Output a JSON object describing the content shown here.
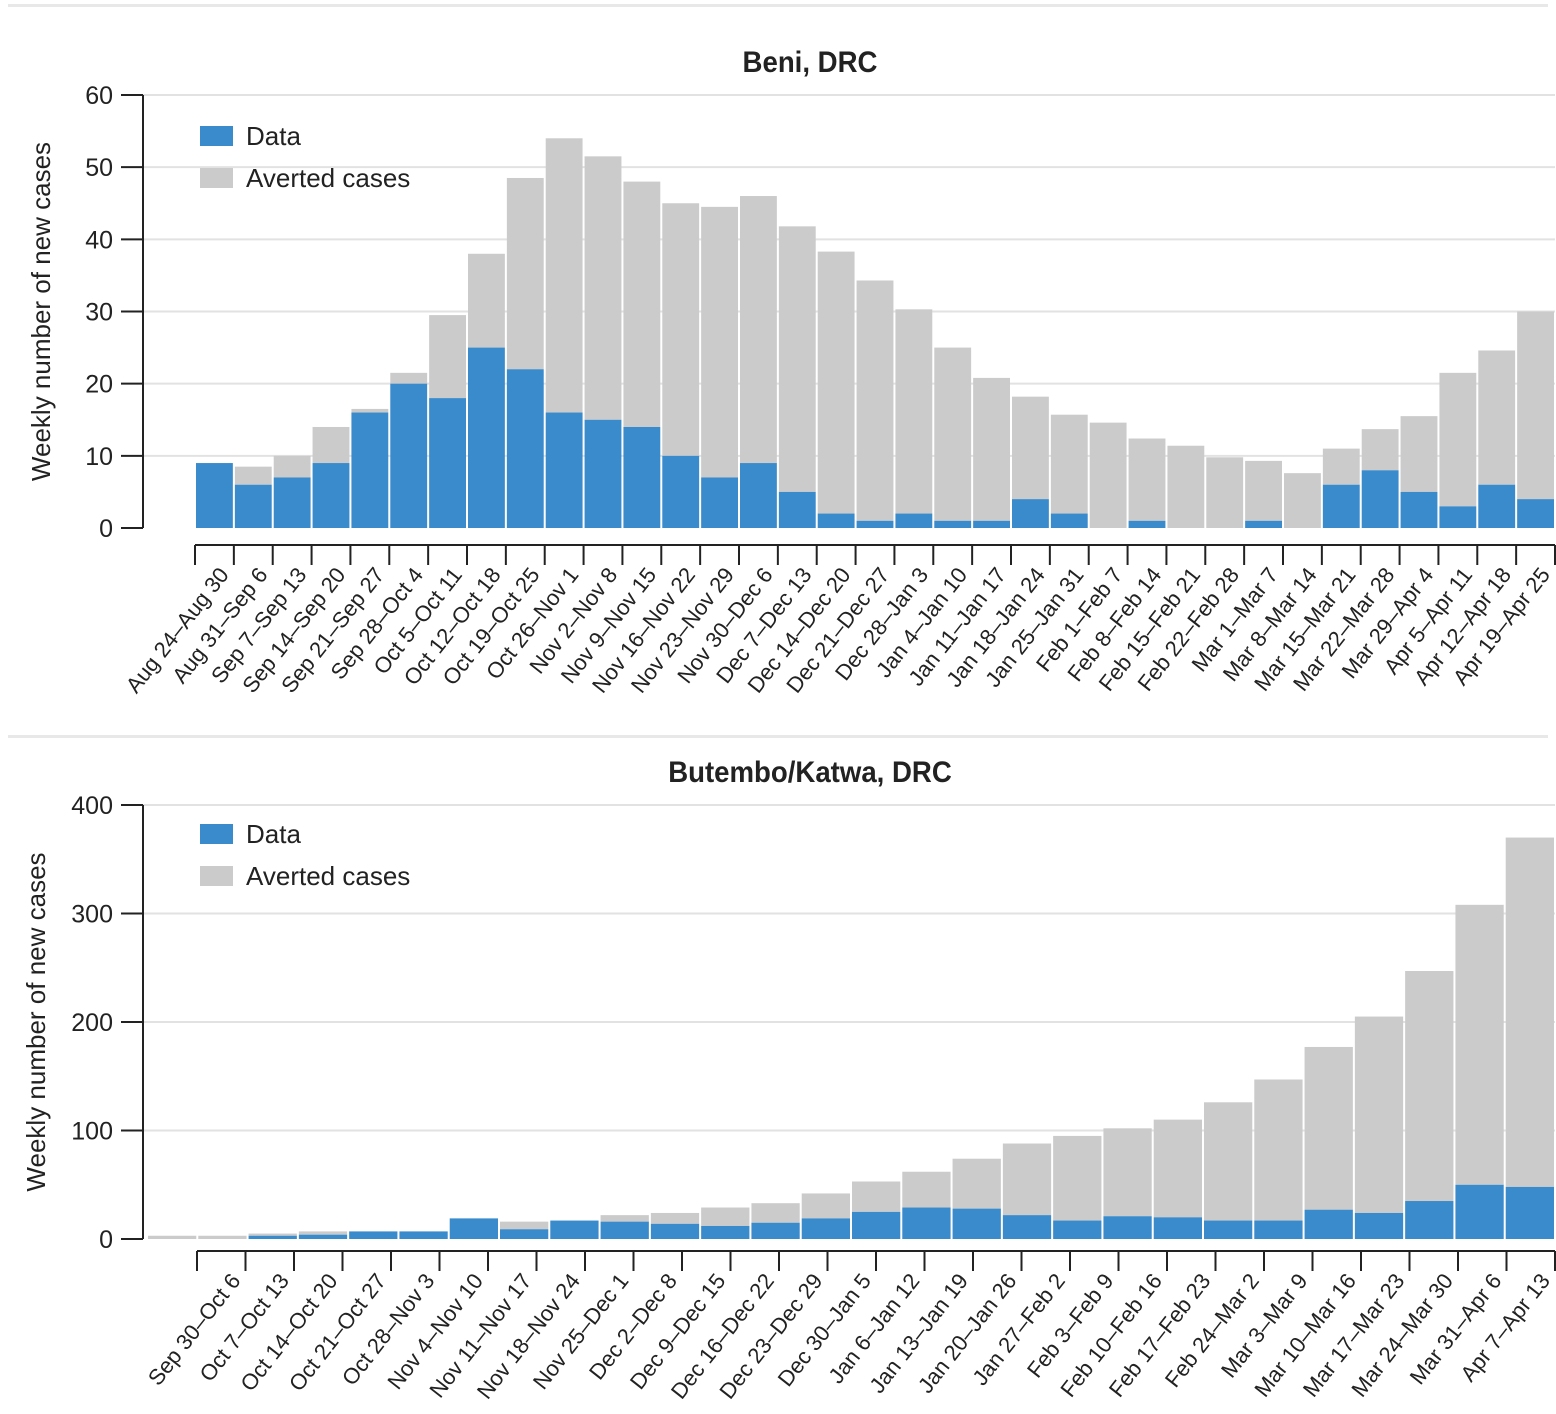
{
  "colors": {
    "data": "#3a8bcb",
    "averted": "#cbcbcb",
    "grid": "#e2e2e2",
    "axis": "#222222",
    "text": "#222222"
  },
  "chart_data": [
    {
      "type": "bar",
      "stacked": true,
      "title": "Beni, DRC",
      "ylabel": "Weekly number of new cases",
      "xlabel": "",
      "ylim": [
        0,
        60
      ],
      "yticks": [
        0,
        10,
        20,
        30,
        40,
        50,
        60
      ],
      "grid": true,
      "legend": {
        "position": "top-left",
        "entries": [
          "Data",
          "Averted cases"
        ]
      },
      "categories": [
        "Aug 24–Aug 30",
        "Aug 31–Sep 6",
        "Sep 7–Sep 13",
        "Sep 14–Sep 20",
        "Sep 21–Sep 27",
        "Sep 28–Oct 4",
        "Oct 5–Oct 11",
        "Oct 12–Oct 18",
        "Oct 19–Oct 25",
        "Oct 26–Nov 1",
        "Nov 2–Nov 8",
        "Nov 9–Nov 15",
        "Nov 16–Nov 22",
        "Nov 23–Nov 29",
        "Nov 30–Dec 6",
        "Dec 7–Dec 13",
        "Dec 14–Dec 20",
        "Dec 21–Dec 27",
        "Dec 28–Jan 3",
        "Jan 4–Jan 10",
        "Jan 11–Jan 17",
        "Jan 18–Jan 24",
        "Jan 25–Jan 31",
        "Feb 1–Feb 7",
        "Feb 8–Feb 14",
        "Feb 15–Feb 21",
        "Feb 22–Feb 28",
        "Mar 1–Mar 7",
        "Mar 8–Mar 14",
        "Mar 15–Mar 21",
        "Mar 22–Mar 28",
        "Mar 29–Apr 4",
        "Apr 5–Apr 11",
        "Apr 12–Apr 18",
        "Apr 19–Apr 25"
      ],
      "series": [
        {
          "name": "Data",
          "values": [
            9,
            6,
            7,
            9,
            16,
            20,
            18,
            25,
            22,
            16,
            15,
            14,
            10,
            7,
            9,
            5,
            2,
            1,
            2,
            1,
            1,
            4,
            2,
            0,
            1,
            0,
            0,
            1,
            0,
            6,
            8,
            5,
            3,
            6,
            4
          ]
        },
        {
          "name": "Averted cases",
          "values": [
            0,
            2.5,
            3,
            5,
            0.5,
            1.5,
            11.5,
            13,
            26.5,
            38,
            36.5,
            34,
            35,
            37.5,
            37,
            36.8,
            36.3,
            33.3,
            28.3,
            24,
            19.8,
            14.2,
            13.7,
            14.6,
            11.4,
            11.4,
            9.8,
            8.3,
            7.6,
            5,
            5.7,
            10.5,
            18.5,
            18.6,
            26
          ]
        }
      ]
    },
    {
      "type": "bar",
      "stacked": true,
      "title": "Butembo/Katwa, DRC",
      "ylabel": "Weekly number of new cases",
      "xlabel": "",
      "ylim": [
        0,
        400
      ],
      "yticks": [
        0,
        100,
        200,
        300,
        400
      ],
      "grid": true,
      "legend": {
        "position": "top-left",
        "entries": [
          "Data",
          "Averted cases"
        ]
      },
      "categories": [
        "Sep 30–Oct 6",
        "Oct 7–Oct 13",
        "Oct 14–Oct 20",
        "Oct 21–Oct 27",
        "Oct 28–Nov 3",
        "Nov 4–Nov 10",
        "Nov 11–Nov 17",
        "Nov 18–Nov 24",
        "Nov 25–Dec 1",
        "Dec 2–Dec 8",
        "Dec 9–Dec 15",
        "Dec 16–Dec 22",
        "Dec 23–Dec 29",
        "Dec 30–Jan 5",
        "Jan 6–Jan 12",
        "Jan 13–Jan 19",
        "Jan 20–Jan 26",
        "Jan 27–Feb 2",
        "Feb 3–Feb 9",
        "Feb 10–Feb 16",
        "Feb 17–Feb 23",
        "Feb 24–Mar 2",
        "Mar 3–Mar 9",
        "Mar 10–Mar 16",
        "Mar 17–Mar 23",
        "Mar 24–Mar 30",
        "Mar 31–Apr 6",
        "Apr 7–Apr 13"
      ],
      "series": [
        {
          "name": "Data",
          "values": [
            0,
            0,
            3,
            4,
            7,
            7,
            19,
            9,
            17,
            16,
            14,
            12,
            15,
            19,
            25,
            29,
            28,
            22,
            17,
            21,
            20,
            17,
            17,
            27,
            24,
            35,
            50,
            48
          ]
        },
        {
          "name": "Averted cases",
          "values": [
            3,
            3,
            2,
            3,
            0,
            0,
            0,
            7,
            0,
            6,
            10,
            17,
            18,
            23,
            28,
            33,
            46,
            66,
            78,
            81,
            90,
            109,
            130,
            150,
            181,
            212,
            258,
            322
          ]
        }
      ]
    }
  ]
}
